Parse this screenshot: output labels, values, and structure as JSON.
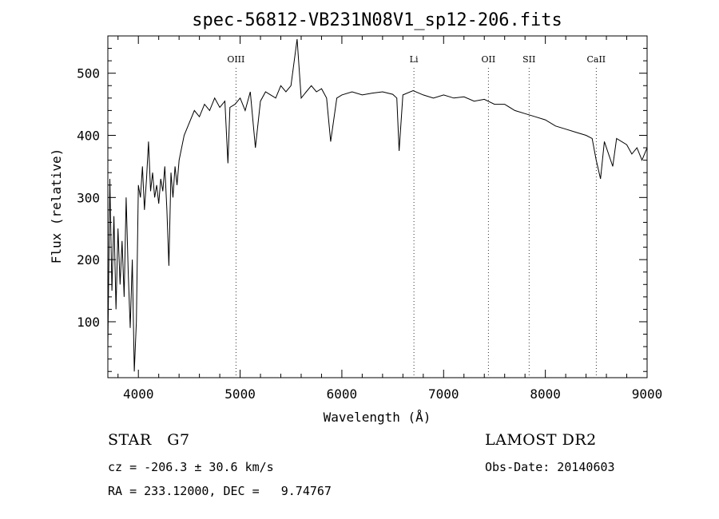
{
  "chart_data": {
    "type": "line",
    "title": "spec-56812-VB231N08V1_sp12-206.fits",
    "xlabel": "Wavelength (Å)",
    "ylabel": "Flux (relative)",
    "xlim": [
      3700,
      9000
    ],
    "ylim": [
      10,
      560
    ],
    "xticks": [
      4000,
      5000,
      6000,
      7000,
      8000,
      9000
    ],
    "yticks": [
      100,
      200,
      300,
      400,
      500
    ],
    "grid": false,
    "series": [
      {
        "x": [
          3700,
          3720,
          3740,
          3760,
          3780,
          3800,
          3820,
          3840,
          3860,
          3880,
          3900,
          3920,
          3940,
          3960,
          3970,
          3980,
          4000,
          4020,
          4040,
          4060,
          4080,
          4100,
          4120,
          4140,
          4160,
          4180,
          4200,
          4220,
          4240,
          4260,
          4280,
          4300,
          4320,
          4340,
          4360,
          4380,
          4400,
          4450,
          4500,
          4550,
          4600,
          4650,
          4700,
          4750,
          4800,
          4850,
          4880,
          4900,
          4950,
          5000,
          5050,
          5100,
          5150,
          5200,
          5250,
          5300,
          5350,
          5400,
          5450,
          5500,
          5560,
          5600,
          5650,
          5700,
          5750,
          5800,
          5850,
          5890,
          5950,
          6000,
          6100,
          6200,
          6300,
          6400,
          6500,
          6540,
          6563,
          6600,
          6700,
          6800,
          6900,
          7000,
          7100,
          7200,
          7300,
          7400,
          7500,
          7600,
          7700,
          7800,
          7900,
          8000,
          8100,
          8200,
          8300,
          8400,
          8460,
          8500,
          8542,
          8580,
          8662,
          8700,
          8800,
          8850,
          8900,
          8950,
          9000
        ],
        "y": [
          60,
          330,
          150,
          270,
          120,
          250,
          160,
          230,
          140,
          300,
          180,
          90,
          200,
          20,
          60,
          100,
          320,
          300,
          350,
          280,
          330,
          390,
          310,
          340,
          300,
          320,
          290,
          330,
          310,
          350,
          280,
          190,
          340,
          300,
          350,
          320,
          360,
          400,
          420,
          440,
          430,
          450,
          440,
          460,
          445,
          455,
          355,
          445,
          450,
          460,
          440,
          470,
          380,
          455,
          470,
          465,
          460,
          480,
          470,
          480,
          555,
          460,
          470,
          480,
          470,
          475,
          460,
          390,
          460,
          465,
          470,
          465,
          468,
          470,
          466,
          460,
          375,
          465,
          472,
          465,
          460,
          465,
          460,
          462,
          455,
          458,
          450,
          450,
          440,
          435,
          430,
          425,
          415,
          410,
          405,
          400,
          395,
          360,
          330,
          390,
          350,
          395,
          385,
          370,
          380,
          360,
          380
        ]
      }
    ],
    "annotations": [
      {
        "label": "OIII",
        "x": 4959
      },
      {
        "label": "Li",
        "x": 6708
      },
      {
        "label": "OII",
        "x": 7440
      },
      {
        "label": "SII",
        "x": 7840
      },
      {
        "label": "CaII",
        "x": 8500
      }
    ]
  },
  "info": {
    "star_class": "STAR   G7",
    "survey": "LAMOST DR2",
    "cz": "cz = -206.3 ± 30.6 km/s",
    "obs_date": "Obs-Date: 20140603",
    "radec": "RA = 233.12000, DEC =   9.74767"
  }
}
